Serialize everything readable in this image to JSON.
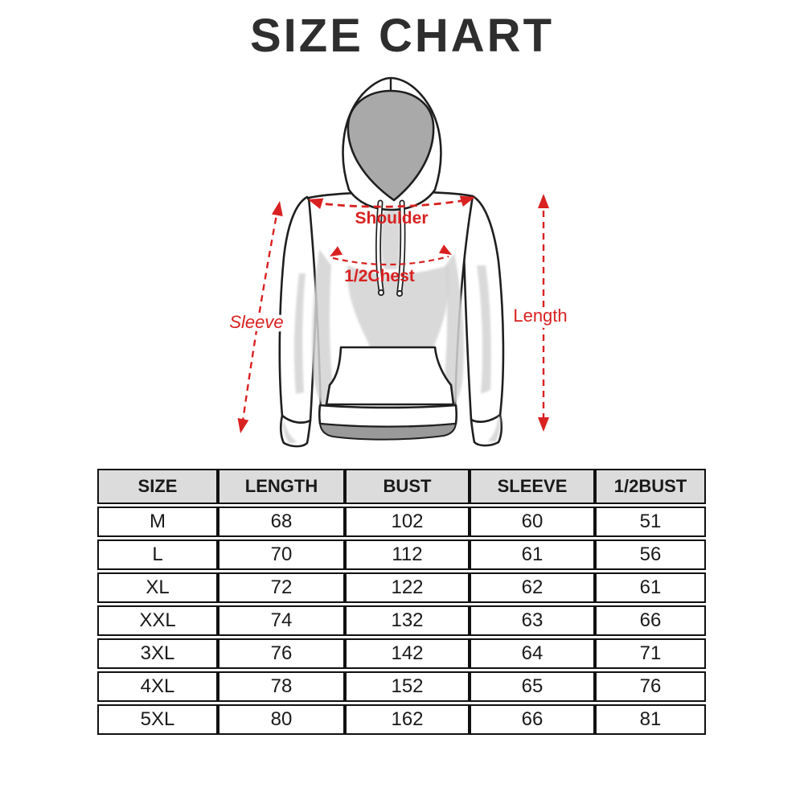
{
  "page": {
    "title": "SIZE CHART"
  },
  "diagram": {
    "garment": "hoodie",
    "annotation_color": "#d92121",
    "labels": {
      "shoulder": "Shoulder",
      "half_chest": "1/2Chest",
      "sleeve": "Sleeve",
      "length": "Length"
    }
  },
  "table": {
    "header_bg": "#dcdcdc",
    "headers": [
      "SIZE",
      "LENGTH",
      "BUST",
      "SLEEVE",
      "1/2BUST"
    ],
    "rows": [
      [
        "M",
        "68",
        "102",
        "60",
        "51"
      ],
      [
        "L",
        "70",
        "112",
        "61",
        "56"
      ],
      [
        "XL",
        "72",
        "122",
        "62",
        "61"
      ],
      [
        "XXL",
        "74",
        "132",
        "63",
        "66"
      ],
      [
        "3XL",
        "76",
        "142",
        "64",
        "71"
      ],
      [
        "4XL",
        "78",
        "152",
        "65",
        "76"
      ],
      [
        "5XL",
        "80",
        "162",
        "66",
        "81"
      ]
    ]
  }
}
